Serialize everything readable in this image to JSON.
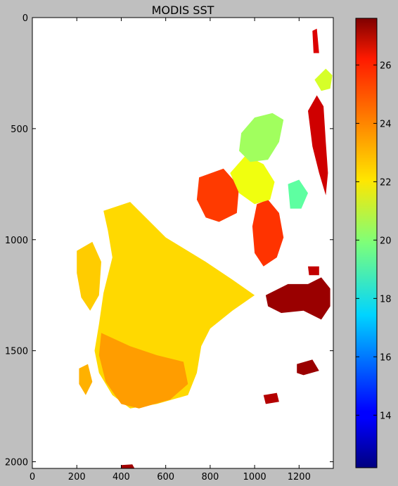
{
  "chart_data": {
    "type": "heatmap",
    "title": "MODIS SST",
    "xlabel": "",
    "ylabel": "",
    "xlim": [
      0,
      1354
    ],
    "ylim": [
      2030,
      0
    ],
    "x_ticks": [
      0,
      200,
      400,
      600,
      800,
      1000,
      1200
    ],
    "y_ticks": [
      0,
      500,
      1000,
      1500,
      2000
    ],
    "grid": false,
    "colormap": "jet",
    "colorbar": {
      "range": [
        12.2,
        27.6
      ],
      "ticks": [
        14,
        16,
        18,
        20,
        22,
        24,
        26
      ]
    },
    "regions": [
      {
        "value": 22.4,
        "points": [
          [
            320,
            870
          ],
          [
            440,
            830
          ],
          [
            600,
            990
          ],
          [
            780,
            1100
          ],
          [
            900,
            1180
          ],
          [
            1000,
            1250
          ],
          [
            900,
            1320
          ],
          [
            800,
            1400
          ],
          [
            760,
            1480
          ],
          [
            740,
            1600
          ],
          [
            700,
            1700
          ],
          [
            560,
            1740
          ],
          [
            440,
            1760
          ],
          [
            360,
            1700
          ],
          [
            300,
            1600
          ],
          [
            280,
            1500
          ],
          [
            300,
            1380
          ],
          [
            320,
            1240
          ],
          [
            360,
            1080
          ],
          [
            340,
            960
          ]
        ]
      },
      {
        "value": 23.3,
        "points": [
          [
            310,
            1420
          ],
          [
            440,
            1480
          ],
          [
            560,
            1520
          ],
          [
            680,
            1550
          ],
          [
            700,
            1650
          ],
          [
            620,
            1720
          ],
          [
            480,
            1760
          ],
          [
            400,
            1740
          ],
          [
            330,
            1640
          ],
          [
            300,
            1520
          ]
        ]
      },
      {
        "value": 22.6,
        "points": [
          [
            200,
            1050
          ],
          [
            270,
            1010
          ],
          [
            310,
            1100
          ],
          [
            300,
            1250
          ],
          [
            260,
            1320
          ],
          [
            220,
            1260
          ],
          [
            200,
            1150
          ]
        ]
      },
      {
        "value": 23.0,
        "points": [
          [
            210,
            1580
          ],
          [
            250,
            1560
          ],
          [
            270,
            1640
          ],
          [
            240,
            1700
          ],
          [
            210,
            1650
          ]
        ]
      },
      {
        "value": 24.8,
        "points": [
          [
            750,
            720
          ],
          [
            860,
            680
          ],
          [
            930,
            760
          ],
          [
            920,
            880
          ],
          [
            840,
            920
          ],
          [
            780,
            900
          ],
          [
            740,
            820
          ]
        ]
      },
      {
        "value": 24.9,
        "points": [
          [
            1010,
            840
          ],
          [
            1060,
            820
          ],
          [
            1110,
            880
          ],
          [
            1130,
            990
          ],
          [
            1100,
            1080
          ],
          [
            1040,
            1120
          ],
          [
            1000,
            1060
          ],
          [
            990,
            940
          ]
        ]
      },
      {
        "value": 21.6,
        "points": [
          [
            890,
            700
          ],
          [
            960,
            620
          ],
          [
            1040,
            660
          ],
          [
            1090,
            740
          ],
          [
            1070,
            820
          ],
          [
            1000,
            840
          ],
          [
            930,
            790
          ]
        ]
      },
      {
        "value": 20.4,
        "points": [
          [
            940,
            520
          ],
          [
            1000,
            450
          ],
          [
            1080,
            430
          ],
          [
            1130,
            460
          ],
          [
            1110,
            560
          ],
          [
            1060,
            640
          ],
          [
            980,
            650
          ],
          [
            930,
            600
          ]
        ]
      },
      {
        "value": 19.4,
        "points": [
          [
            1150,
            750
          ],
          [
            1200,
            730
          ],
          [
            1240,
            790
          ],
          [
            1210,
            860
          ],
          [
            1160,
            860
          ]
        ]
      },
      {
        "value": 27.2,
        "points": [
          [
            1050,
            1250
          ],
          [
            1150,
            1200
          ],
          [
            1240,
            1200
          ],
          [
            1300,
            1170
          ],
          [
            1340,
            1220
          ],
          [
            1340,
            1300
          ],
          [
            1300,
            1360
          ],
          [
            1220,
            1320
          ],
          [
            1120,
            1330
          ],
          [
            1060,
            1300
          ]
        ]
      },
      {
        "value": 26.4,
        "points": [
          [
            1240,
            420
          ],
          [
            1280,
            350
          ],
          [
            1310,
            400
          ],
          [
            1320,
            560
          ],
          [
            1330,
            700
          ],
          [
            1320,
            800
          ],
          [
            1290,
            700
          ],
          [
            1260,
            580
          ]
        ]
      },
      {
        "value": 21.2,
        "points": [
          [
            1270,
            280
          ],
          [
            1320,
            230
          ],
          [
            1350,
            260
          ],
          [
            1340,
            320
          ],
          [
            1300,
            330
          ]
        ]
      },
      {
        "value": 27.2,
        "points": [
          [
            1190,
            1560
          ],
          [
            1260,
            1540
          ],
          [
            1290,
            1590
          ],
          [
            1220,
            1610
          ],
          [
            1190,
            1600
          ]
        ]
      },
      {
        "value": 26.8,
        "points": [
          [
            1040,
            1700
          ],
          [
            1100,
            1690
          ],
          [
            1110,
            1730
          ],
          [
            1050,
            1740
          ]
        ]
      },
      {
        "value": 26.2,
        "points": [
          [
            1260,
            60
          ],
          [
            1280,
            50
          ],
          [
            1290,
            160
          ],
          [
            1265,
            160
          ]
        ]
      },
      {
        "value": 26.6,
        "points": [
          [
            1240,
            1120
          ],
          [
            1290,
            1120
          ],
          [
            1290,
            1160
          ],
          [
            1245,
            1160
          ]
        ]
      },
      {
        "value": 27.1,
        "points": [
          [
            400,
            2015
          ],
          [
            450,
            2012
          ],
          [
            460,
            2030
          ],
          [
            400,
            2030
          ]
        ]
      }
    ]
  }
}
